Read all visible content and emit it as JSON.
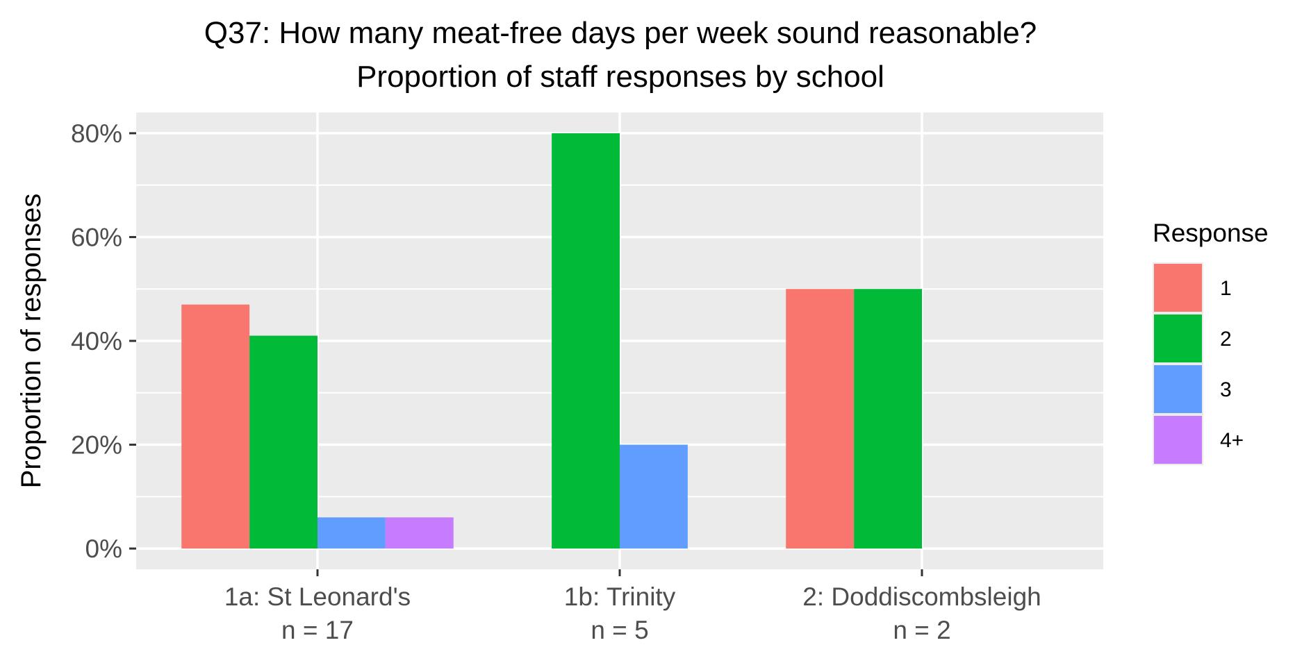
{
  "chart_data": {
    "type": "bar",
    "title": "Q37: How many meat-free days per week sound reasonable?",
    "subtitle": "Proportion of staff responses by school",
    "ylabel": "Proportion of responses",
    "xlabel": "",
    "ylim": [
      -0.04,
      0.84
    ],
    "yticks": [
      {
        "value": 0,
        "label": "0%"
      },
      {
        "value": 0.2,
        "label": "20%"
      },
      {
        "value": 0.4,
        "label": "40%"
      },
      {
        "value": 0.6,
        "label": "60%"
      },
      {
        "value": 0.8,
        "label": "80%"
      }
    ],
    "categories": [
      {
        "label": "1a: St Leonard's",
        "n_label": "n = 17"
      },
      {
        "label": "1b: Trinity",
        "n_label": "n = 5"
      },
      {
        "label": "2: Doddiscombsleigh",
        "n_label": "n = 2"
      }
    ],
    "series": [
      {
        "name": "1",
        "color": "#F8766D",
        "values": [
          0.47,
          0,
          0.5
        ]
      },
      {
        "name": "2",
        "color": "#00BA38",
        "values": [
          0.41,
          0.8,
          0.5
        ]
      },
      {
        "name": "3",
        "color": "#619CFF",
        "values": [
          0.06,
          0.2,
          0
        ]
      },
      {
        "name": "4+",
        "color": "#C77CFF",
        "values": [
          0.06,
          0,
          0
        ]
      }
    ],
    "present": [
      [
        true,
        true,
        true,
        true
      ],
      [
        false,
        true,
        true,
        false
      ],
      [
        true,
        true,
        false,
        false
      ]
    ],
    "legend": {
      "title": "Response",
      "position": "right"
    },
    "grid": true,
    "panel_background": "#EBEBEB",
    "grid_color": "#FFFFFF"
  }
}
